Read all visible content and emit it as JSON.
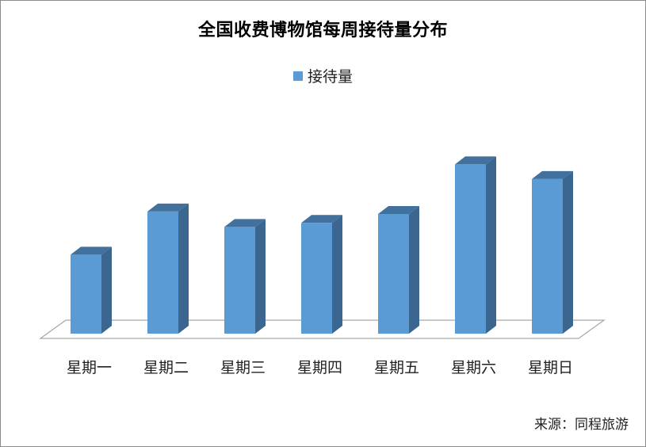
{
  "chart_data": {
    "type": "bar",
    "style": "3d-column",
    "title": "全国收费博物馆每周接待量分布",
    "categories": [
      "星期一",
      "星期二",
      "星期三",
      "星期四",
      "星期五",
      "星期六",
      "星期日"
    ],
    "series": [
      {
        "name": "接待量",
        "values": [
          97,
          150,
          131,
          136,
          147,
          208,
          190
        ]
      }
    ],
    "ylim": [
      0,
      220
    ],
    "grid": false,
    "legend": "top-center",
    "colors": {
      "front": "#5b9bd5",
      "side": "#3a6690",
      "top": "#41719c"
    }
  },
  "source": "来源：同程旅游"
}
